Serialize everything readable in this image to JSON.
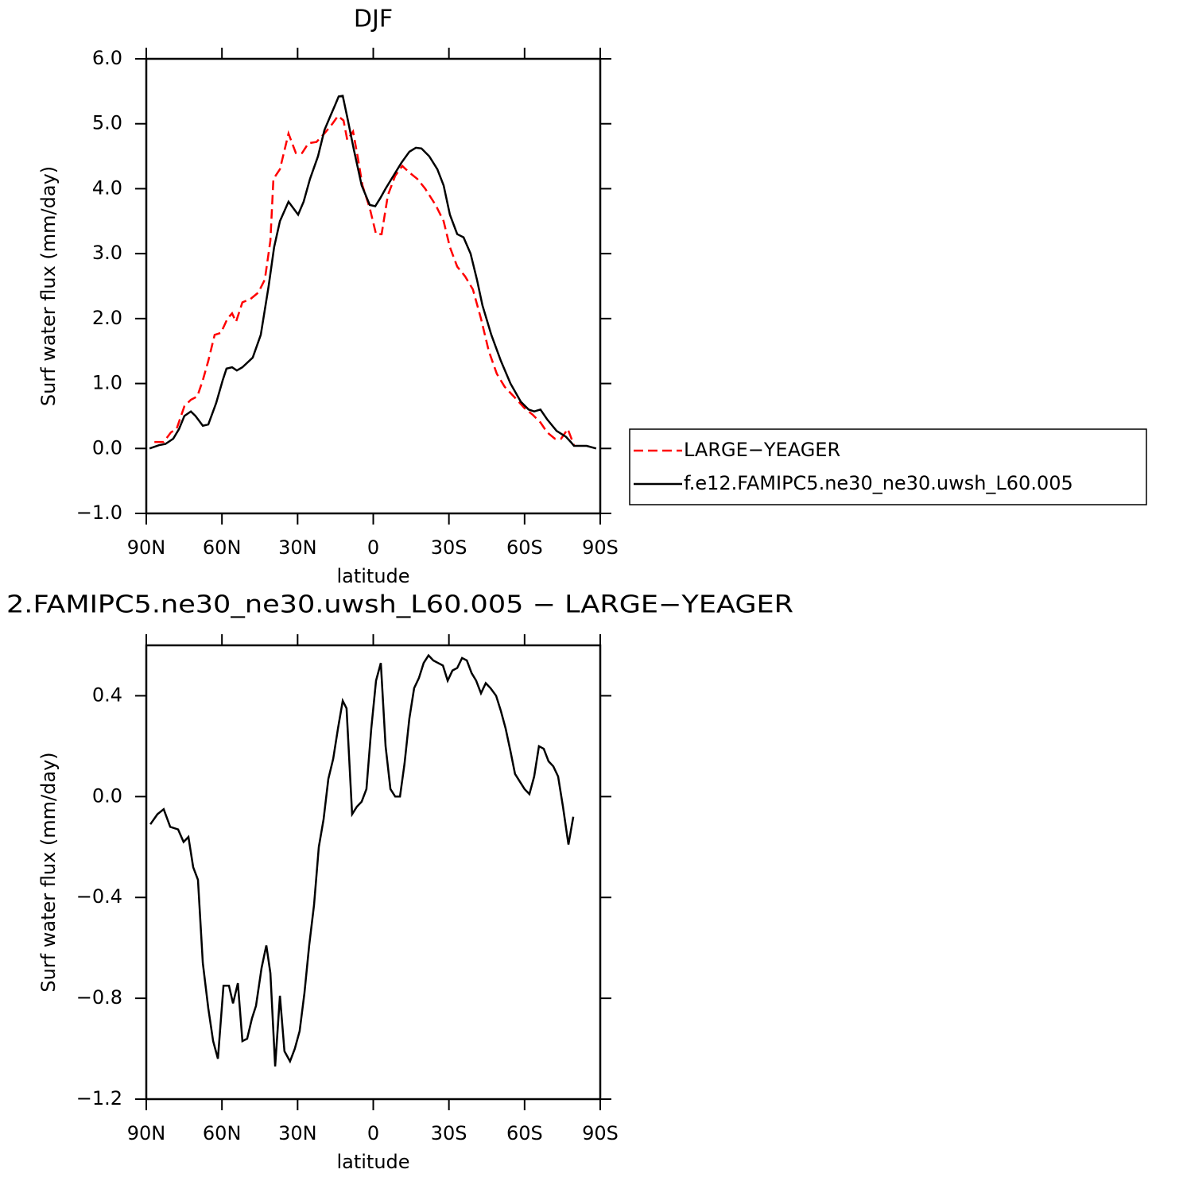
{
  "chart_data": [
    {
      "type": "line",
      "title": "DJF",
      "xlabel": "latitude",
      "ylabel": "Surf water flux (mm/day)",
      "xlim": [
        90,
        -90
      ],
      "xticks": [
        {
          "value": 90,
          "label": "90N"
        },
        {
          "value": 60,
          "label": "60N"
        },
        {
          "value": 30,
          "label": "30N"
        },
        0,
        {
          "value": -30,
          "label": "30S"
        },
        {
          "value": -60,
          "label": "60S"
        },
        {
          "value": -90,
          "label": "90S"
        }
      ],
      "ylim": [
        -1,
        6
      ],
      "yticks": [
        {
          "value": -1,
          "label": "−1.0"
        },
        {
          "value": 0,
          "label": "0.0"
        },
        {
          "value": 1,
          "label": "1.0"
        },
        {
          "value": 2,
          "label": "2.0"
        },
        {
          "value": 3,
          "label": "3.0"
        },
        {
          "value": 4,
          "label": "4.0"
        },
        {
          "value": 5,
          "label": "5.0"
        },
        {
          "value": 6,
          "label": "6.0"
        }
      ],
      "legend": "right",
      "series": [
        {
          "name": "LARGE−YEAGER",
          "color": "#ff0000",
          "style": "dashed",
          "x": [
            86.8,
            83.1,
            80.2,
            78,
            74.9,
            72.3,
            69.8,
            67.6,
            65.4,
            62.9,
            60.4,
            57.8,
            56,
            54.4,
            51.9,
            48.7,
            45.6,
            43,
            40.8,
            39.6,
            37,
            33.6,
            30.7,
            28.2,
            25.7,
            22.5,
            19.4,
            16.2,
            14,
            11.8,
            10.3,
            8,
            6.2,
            4.3,
            1.4,
            -1.1,
            -3.3,
            -5.8,
            -8.7,
            -11.5,
            -14.3,
            -17.5,
            -20.6,
            -24.7,
            -27.9,
            -30.4,
            -33.3,
            -36.4,
            -39.5,
            -42.7,
            -45.8,
            -49,
            -52.1,
            -56.2,
            -60,
            -63.2,
            -66.3,
            -68.9,
            -72,
            -74.5,
            -77.1,
            -79.6
          ],
          "values": [
            0.1,
            0.1,
            0.25,
            0.3,
            0.65,
            0.75,
            0.8,
            1.05,
            1.35,
            1.75,
            1.78,
            2.0,
            2.08,
            1.95,
            2.25,
            2.3,
            2.4,
            2.6,
            3.2,
            4.15,
            4.3,
            4.85,
            4.55,
            4.55,
            4.7,
            4.72,
            4.85,
            5.0,
            5.12,
            5.05,
            4.75,
            4.88,
            4.5,
            4.05,
            3.7,
            3.3,
            3.3,
            3.9,
            4.2,
            4.35,
            4.25,
            4.15,
            4.0,
            3.75,
            3.5,
            3.1,
            2.8,
            2.65,
            2.45,
            2.0,
            1.5,
            1.15,
            0.95,
            0.78,
            0.62,
            0.52,
            0.4,
            0.25,
            0.15,
            0.15,
            0.3,
            0.05
          ]
        },
        {
          "name": "f.e12.FAMIPC5.ne30_ne30.uwsh_L60.005",
          "color": "#000000",
          "style": "solid",
          "x": [
            88.7,
            85,
            82.4,
            79.3,
            77,
            74.9,
            72.3,
            70.5,
            67.6,
            65.4,
            62.3,
            59.7,
            58.2,
            56,
            54.1,
            51.9,
            47.8,
            44.6,
            41.5,
            39.3,
            37,
            33.6,
            29.8,
            27.6,
            25.1,
            21.9,
            19.4,
            17.2,
            15,
            13.7,
            12.1,
            10.3,
            7.7,
            4.6,
            1.4,
            -0.8,
            -2.7,
            -4.9,
            -8,
            -11.2,
            -14.3,
            -16.9,
            -19.1,
            -22.2,
            -25.4,
            -27.9,
            -30.4,
            -33.3,
            -35.8,
            -38.6,
            -41.1,
            -43.3,
            -46.8,
            -50.6,
            -54.4,
            -58.5,
            -61.6,
            -63.8,
            -66.3,
            -68.9,
            -72.7,
            -76.4,
            -78.3,
            -79.6,
            -84.6,
            -88.4
          ],
          "values": [
            0.0,
            0.05,
            0.07,
            0.15,
            0.3,
            0.5,
            0.57,
            0.5,
            0.35,
            0.37,
            0.7,
            1.05,
            1.23,
            1.25,
            1.2,
            1.25,
            1.4,
            1.75,
            2.5,
            3.1,
            3.5,
            3.8,
            3.6,
            3.8,
            4.15,
            4.5,
            4.9,
            5.1,
            5.3,
            5.42,
            5.43,
            5.1,
            4.6,
            4.05,
            3.75,
            3.73,
            3.85,
            4.0,
            4.2,
            4.4,
            4.57,
            4.63,
            4.62,
            4.5,
            4.3,
            4.05,
            3.6,
            3.3,
            3.25,
            3.0,
            2.6,
            2.2,
            1.75,
            1.35,
            1.0,
            0.72,
            0.6,
            0.57,
            0.6,
            0.45,
            0.27,
            0.18,
            0.1,
            0.04,
            0.04,
            0.0
          ]
        }
      ]
    },
    {
      "type": "line",
      "title": "2.FAMIPC5.ne30_ne30.uwsh_L60.005 − LARGE−YEAGER",
      "xlabel": "latitude",
      "ylabel": "Surf water flux (mm/day)",
      "xlim": [
        90,
        -90
      ],
      "xticks": [
        {
          "value": 90,
          "label": "90N"
        },
        {
          "value": 60,
          "label": "60N"
        },
        {
          "value": 30,
          "label": "30N"
        },
        0,
        {
          "value": -30,
          "label": "30S"
        },
        {
          "value": -60,
          "label": "60S"
        },
        {
          "value": -90,
          "label": "90S"
        }
      ],
      "ylim": [
        -1.2,
        0.6
      ],
      "yticks": [
        {
          "value": -1.2,
          "label": "−1.2"
        },
        {
          "value": -0.8,
          "label": "−0.8"
        },
        {
          "value": -0.4,
          "label": "−0.4"
        },
        {
          "value": 0,
          "label": "0.0"
        },
        0.4
      ],
      "series": [
        {
          "color": "#000000",
          "style": "solid",
          "x": [
            88.4,
            85.6,
            83.1,
            80.5,
            77.4,
            75.2,
            73.3,
            71.4,
            69.5,
            67.6,
            65.4,
            63.5,
            61.6,
            59.4,
            57.2,
            55.6,
            53.7,
            51.9,
            50,
            48.1,
            46.5,
            44.3,
            42.4,
            40.8,
            38.9,
            37,
            35.2,
            33,
            31.1,
            29.2,
            27.3,
            25.4,
            23.5,
            21.6,
            19.7,
            17.8,
            15.9,
            14,
            12.1,
            10.6,
            8.4,
            6.5,
            4.6,
            2.7,
            0.8,
            -1.1,
            -3,
            -4.9,
            -6.8,
            -8.7,
            -10.6,
            -12.4,
            -14.3,
            -16.2,
            -18.1,
            -20,
            -21.9,
            -23.8,
            -25.7,
            -27.6,
            -29.5,
            -31.4,
            -33.3,
            -35.2,
            -37.1,
            -39,
            -40.8,
            -42.7,
            -44.6,
            -46.5,
            -48.7,
            -50.6,
            -52.5,
            -54.4,
            -56.2,
            -58.1,
            -60,
            -61.9,
            -63.8,
            -65.7,
            -67.6,
            -69.5,
            -71.4,
            -73.3,
            -75.2,
            -77.4,
            -79.3
          ],
          "values": [
            -0.11,
            -0.07,
            -0.05,
            -0.12,
            -0.13,
            -0.18,
            -0.16,
            -0.28,
            -0.33,
            -0.66,
            -0.84,
            -0.97,
            -1.04,
            -0.75,
            -0.75,
            -0.82,
            -0.74,
            -0.97,
            -0.96,
            -0.88,
            -0.83,
            -0.68,
            -0.59,
            -0.7,
            -1.07,
            -0.79,
            -1.01,
            -1.05,
            -1.0,
            -0.93,
            -0.78,
            -0.59,
            -0.43,
            -0.2,
            -0.09,
            0.07,
            0.15,
            0.27,
            0.38,
            0.35,
            -0.07,
            -0.04,
            -0.02,
            0.03,
            0.27,
            0.46,
            0.53,
            0.2,
            0.03,
            0.0,
            0.0,
            0.13,
            0.31,
            0.43,
            0.47,
            0.53,
            0.56,
            0.54,
            0.53,
            0.52,
            0.46,
            0.5,
            0.51,
            0.55,
            0.54,
            0.49,
            0.46,
            0.41,
            0.45,
            0.43,
            0.4,
            0.34,
            0.27,
            0.18,
            0.09,
            0.06,
            0.03,
            0.01,
            0.08,
            0.2,
            0.19,
            0.14,
            0.12,
            0.08,
            -0.04,
            -0.19,
            -0.08
          ]
        }
      ]
    }
  ]
}
